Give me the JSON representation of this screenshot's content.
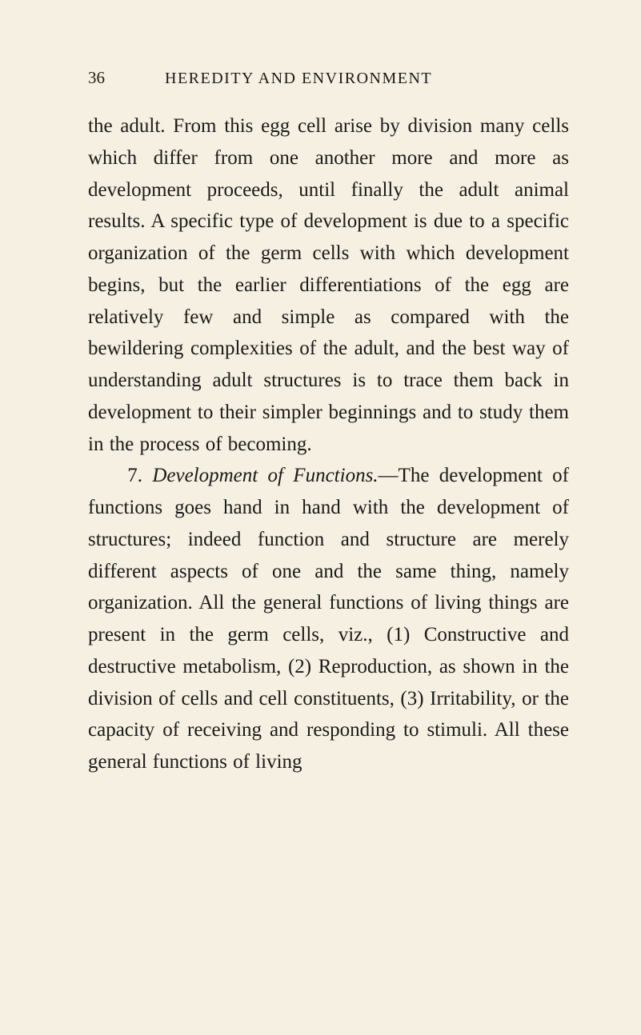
{
  "page": {
    "number": "36",
    "running_title": "HEREDITY AND ENVIRONMENT",
    "body_html": "the adult. From this egg cell arise by divi­sion many cells which differ from one another more and more as development proceeds, until finally the adult animal results. A specific type of development is due to a specific organ­ization of the germ cells with which develop­ment begins, but the earlier differentiations of the egg are relatively few and simple as compared with the bewildering complexities of the adult, and the best way of understand­ing adult structures is to trace them back in development to their simpler beginnings and to study them in the process of becoming.",
    "section7_number": "7. ",
    "section7_title": "Development of Functions.",
    "section7_text": "—The de­velopment of functions goes hand in hand with the development of structures; indeed function and structure are merely different aspects of one and the same thing, namely organization. All the general functions of living things are present in the germ cells, viz., (1) Constructive and destructive metabolism, (2) Reproduction, as shown in the division of cells and cell constituents, (3) Irritability, or the capacity of receiving and responding to stimuli. All these general functions of living"
  },
  "style": {
    "background_color": "#f5f0e1",
    "text_color": "#1a1a1a",
    "body_fontsize": 25,
    "header_fontsize": 21,
    "line_height": 1.59,
    "font_family": "Century Schoolbook"
  }
}
